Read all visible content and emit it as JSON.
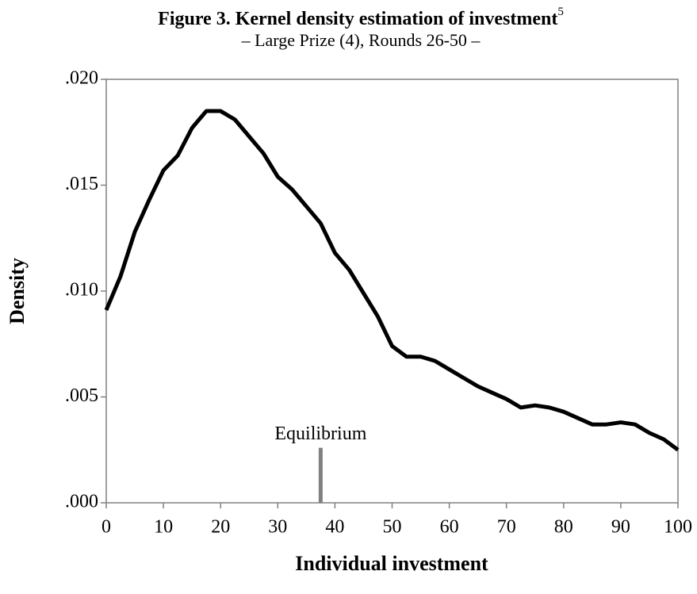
{
  "chart_data": {
    "type": "line",
    "title": "Figure 3. Kernel density estimation of investment",
    "title_note": "5",
    "subtitle": "– Large Prize (4), Rounds 26-50 –",
    "x_label": "Individual investment",
    "y_label": "Density",
    "xlim": [
      0,
      100
    ],
    "xticks": [
      0,
      10,
      20,
      30,
      40,
      50,
      60,
      70,
      80,
      90,
      100
    ],
    "ylim": [
      0,
      0.02
    ],
    "yticks": [
      {
        "value": 0,
        "label": ".000"
      },
      {
        "value": 0.005,
        "label": ".005"
      },
      {
        "value": 0.01,
        "label": ".010"
      },
      {
        "value": 0.015,
        "label": ".015"
      },
      {
        "value": 0.02,
        "label": ".020"
      }
    ],
    "x": [
      0,
      2.5,
      5,
      7.5,
      10,
      12.5,
      15,
      17.5,
      20,
      22.5,
      25,
      27.5,
      30,
      32.5,
      35,
      37.5,
      40,
      42.5,
      45,
      47.5,
      50,
      52.5,
      55,
      57.5,
      60,
      62.5,
      65,
      67.5,
      70,
      72.5,
      75,
      77.5,
      80,
      82.5,
      85,
      87.5,
      90,
      92.5,
      95,
      97.5,
      100
    ],
    "series": [
      {
        "name": "Density",
        "color": "#000000",
        "values": [
          0.0091,
          0.0107,
          0.0128,
          0.0143,
          0.0157,
          0.0164,
          0.0177,
          0.0185,
          0.0185,
          0.0181,
          0.0173,
          0.0165,
          0.0154,
          0.0148,
          0.014,
          0.0132,
          0.0118,
          0.011,
          0.0099,
          0.0088,
          0.0074,
          0.0069,
          0.0069,
          0.0067,
          0.0063,
          0.0059,
          0.0055,
          0.0052,
          0.0049,
          0.0045,
          0.0046,
          0.0045,
          0.0043,
          0.004,
          0.0037,
          0.0037,
          0.0038,
          0.0037,
          0.0033,
          0.003,
          0.0025
        ]
      }
    ],
    "annotation": {
      "text": "Equilibrium",
      "x": 37.5,
      "y": 0.0026,
      "color": "#808080"
    }
  }
}
